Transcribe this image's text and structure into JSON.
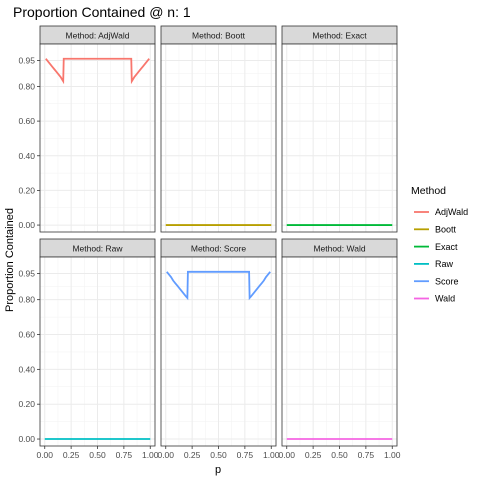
{
  "chart_data": {
    "type": "line",
    "title": "Proportion Contained @ n: 1",
    "xlabel": "p",
    "ylabel": "Proportion Contained",
    "xlim": [
      0,
      1
    ],
    "ylim": [
      0,
      1
    ],
    "x_ticks": [
      "0.00",
      "0.25",
      "0.50",
      "0.75",
      "1.00"
    ],
    "y_ticks": [
      "0.00",
      "0.20",
      "0.40",
      "0.60",
      "0.80",
      "0.95"
    ],
    "grid": true,
    "legend": {
      "title": "Method",
      "placement": "right",
      "entries": [
        "AdjWald",
        "Boott",
        "Exact",
        "Raw",
        "Score",
        "Wald"
      ]
    },
    "colors": {
      "AdjWald": "#F8766D",
      "Boott": "#B79F00",
      "Exact": "#00BA38",
      "Raw": "#00BFC4",
      "Score": "#619CFF",
      "Wald": "#F564E3"
    },
    "facets": [
      {
        "strip": "Method: AdjWald",
        "method": "AdjWald",
        "x": [
          0.01,
          0.03,
          0.05,
          0.07,
          0.09,
          0.11,
          0.13,
          0.15,
          0.17,
          0.175,
          0.18,
          0.5,
          0.82,
          0.825,
          0.83,
          0.85,
          0.87,
          0.89,
          0.91,
          0.93,
          0.95,
          0.97,
          0.99
        ],
        "y": [
          0.96,
          0.945,
          0.93,
          0.915,
          0.9,
          0.885,
          0.87,
          0.855,
          0.835,
          0.83,
          0.96,
          0.96,
          0.96,
          0.83,
          0.835,
          0.855,
          0.87,
          0.885,
          0.9,
          0.915,
          0.93,
          0.945,
          0.96
        ]
      },
      {
        "strip": "Method: Boott",
        "method": "Boott",
        "x": [
          0.0,
          1.0
        ],
        "y": [
          0.0,
          0.0
        ]
      },
      {
        "strip": "Method: Exact",
        "method": "Exact",
        "x": [
          0.0,
          1.0
        ],
        "y": [
          0.0,
          0.0
        ]
      },
      {
        "strip": "Method: Raw",
        "method": "Raw",
        "x": [
          0.0,
          1.0
        ],
        "y": [
          0.0,
          0.0
        ]
      },
      {
        "strip": "Method: Score",
        "method": "Score",
        "x": [
          0.01,
          0.03,
          0.05,
          0.07,
          0.09,
          0.11,
          0.13,
          0.15,
          0.17,
          0.19,
          0.205,
          0.21,
          0.5,
          0.79,
          0.795,
          0.81,
          0.83,
          0.85,
          0.87,
          0.89,
          0.91,
          0.93,
          0.95,
          0.97,
          0.99
        ],
        "y": [
          0.96,
          0.945,
          0.93,
          0.91,
          0.895,
          0.88,
          0.865,
          0.85,
          0.835,
          0.82,
          0.81,
          0.96,
          0.96,
          0.96,
          0.81,
          0.82,
          0.835,
          0.85,
          0.865,
          0.88,
          0.895,
          0.91,
          0.93,
          0.945,
          0.96
        ]
      },
      {
        "strip": "Method: Wald",
        "method": "Wald",
        "x": [
          0.0,
          1.0
        ],
        "y": [
          0.0,
          0.0
        ]
      }
    ]
  }
}
